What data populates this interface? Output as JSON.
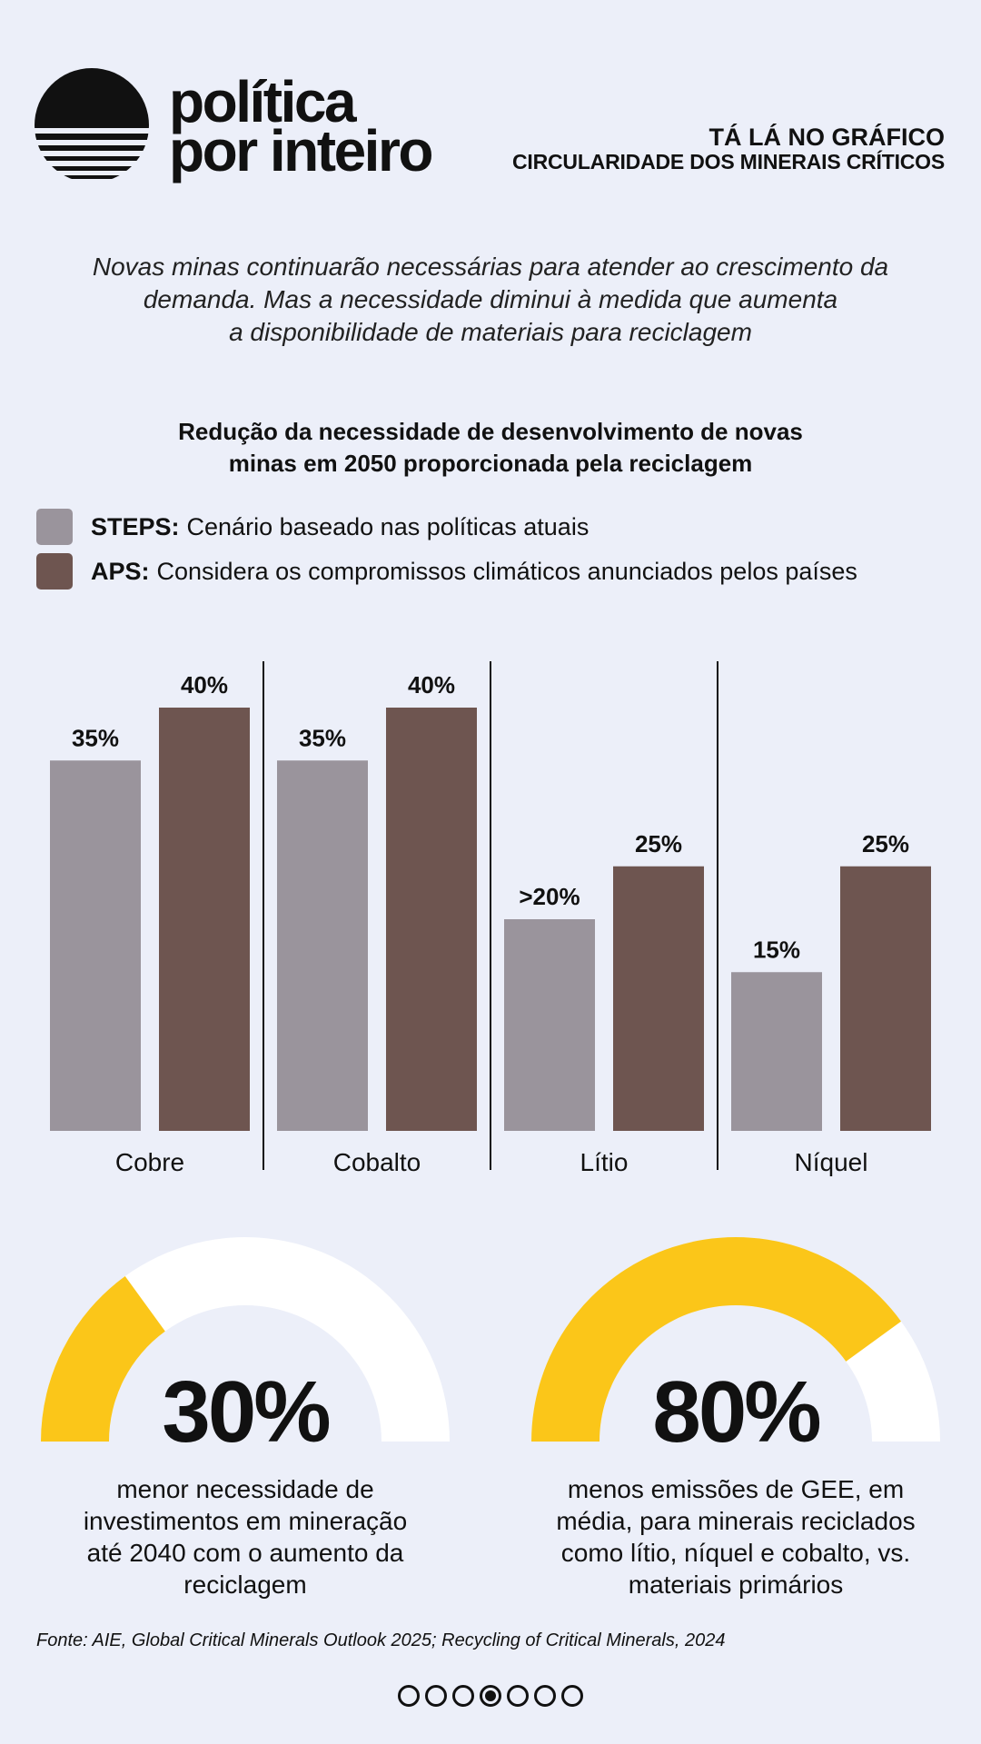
{
  "brand": {
    "line1": "política",
    "line2": "por inteiro",
    "logo_icon": "sunset-stripes-icon"
  },
  "header": {
    "title": "TÁ LÁ NO GRÁFICO",
    "subtitle": "CIRCULARIDADE DOS MINERAIS CRÍTICOS"
  },
  "intro": {
    "lines": [
      "Novas minas continuarão necessárias para atender ao crescimento da",
      "demanda. Mas a necessidade diminui à medida que aumenta",
      "a disponibilidade de materiais para reciclagem"
    ]
  },
  "chart_data": {
    "type": "bar",
    "title_lines": [
      "Redução da necessidade de desenvolvimento de novas",
      "minas em 2050 proporcionada pela reciclagem"
    ],
    "categories": [
      "Cobre",
      "Cobalto",
      "Lítio",
      "Níquel"
    ],
    "series": [
      {
        "name": "STEPS",
        "description": "Cenário baseado nas políticas atuais",
        "color": "#9A949C",
        "values": [
          35,
          35,
          20,
          15
        ],
        "labels": [
          "35%",
          "35%",
          ">20%",
          "15%"
        ]
      },
      {
        "name": "APS",
        "description": "Considera os compromissos climáticos anunciados pelos países",
        "color": "#6E5550",
        "values": [
          40,
          40,
          25,
          25
        ],
        "labels": [
          "40%",
          "40%",
          "25%",
          "25%"
        ]
      }
    ],
    "ylim": [
      0,
      40
    ],
    "grid": false,
    "legend_position": "top-left"
  },
  "gauges": [
    {
      "value": 30,
      "label": "30%",
      "text_lines": [
        "menor necessidade de",
        "investimentos em mineração",
        "até 2040 com o aumento da",
        "reciclagem"
      ]
    },
    {
      "value": 80,
      "label": "80%",
      "text_lines": [
        "menos emissões de GEE, em",
        "média, para minerais reciclados",
        "como lítio, níquel e cobalto, vs.",
        "materiais primários"
      ]
    }
  ],
  "colors": {
    "background": "#ECEFF9",
    "gauge_fill": "#FBC619",
    "gauge_track": "#FFFFFF",
    "ink": "#111111"
  },
  "footer": {
    "source": "Fonte: AIE, Global Critical Minerals Outlook 2025; Recycling of Critical Minerals, 2024"
  },
  "pagination": {
    "total": 7,
    "current": 4
  }
}
